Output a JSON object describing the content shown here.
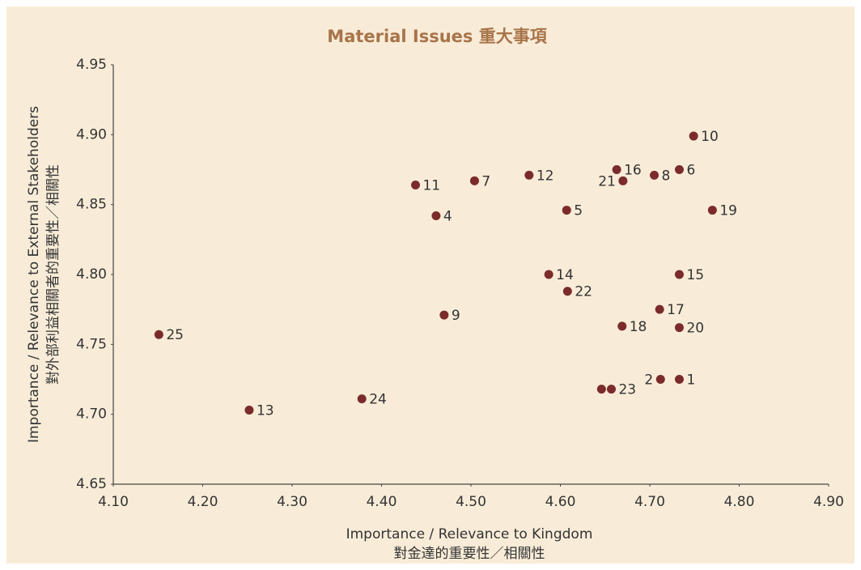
{
  "chart_data": {
    "type": "scatter",
    "title": "Material Issues 重大事項",
    "x_label": [
      "Importance / Relevance to Kingdom",
      "對金達的重要性／相關性"
    ],
    "y_label": [
      "Importance / Relevance to External Stakeholders",
      "對外部利益相關者的重要性／相關性"
    ],
    "color": "#7b2b2b",
    "labels": [
      "1",
      "2",
      null,
      "4",
      "5",
      "6",
      "7",
      "8",
      "9",
      "10",
      "11",
      "12",
      "13",
      "14",
      "15",
      "16",
      "17",
      "18",
      "19",
      "20",
      "21",
      "22",
      "23",
      "24",
      "25"
    ],
    "x": [
      4.733,
      4.712,
      4.646,
      4.461,
      4.607,
      4.733,
      4.504,
      4.705,
      4.47,
      4.749,
      4.438,
      4.565,
      4.252,
      4.587,
      4.733,
      4.663,
      4.711,
      4.669,
      4.77,
      4.733,
      4.67,
      4.608,
      4.657,
      4.378,
      4.151
    ],
    "y": [
      4.725,
      4.725,
      4.718,
      4.842,
      4.846,
      4.875,
      4.867,
      4.871,
      4.771,
      4.899,
      4.864,
      4.871,
      4.703,
      4.8,
      4.8,
      4.875,
      4.775,
      4.763,
      4.846,
      4.762,
      4.867,
      4.788,
      4.718,
      4.711,
      4.757
    ],
    "xlim": [
      4.1,
      4.9
    ],
    "ylim": [
      4.65,
      4.95
    ],
    "xticks": [
      {
        "value": 4.1,
        "label": "4.10"
      },
      {
        "value": 4.2,
        "label": "4.20"
      },
      {
        "value": 4.3,
        "label": "4.30"
      },
      {
        "value": 4.4,
        "label": "4.40"
      },
      {
        "value": 4.5,
        "label": "4.50"
      },
      {
        "value": 4.6,
        "label": "4.60"
      },
      {
        "value": 4.7,
        "label": "4.70"
      },
      {
        "value": 4.8,
        "label": "4.80"
      },
      {
        "value": 4.9,
        "label": "4.90"
      }
    ],
    "yticks": [
      4.65,
      {
        "value": 4.7,
        "label": "4.70"
      },
      4.75,
      {
        "value": 4.8,
        "label": "4.80"
      },
      4.85,
      {
        "value": 4.9,
        "label": "4.90"
      },
      4.95
    ],
    "grid": false
  }
}
